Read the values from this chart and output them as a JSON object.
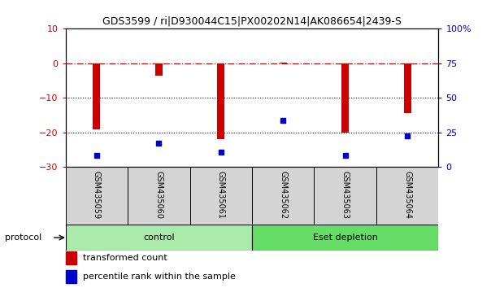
{
  "title": "GDS3599 / ri|D930044C15|PX00202N14|AK086654|2439-S",
  "samples": [
    "GSM435059",
    "GSM435060",
    "GSM435061",
    "GSM435062",
    "GSM435063",
    "GSM435064"
  ],
  "red_values": [
    -19.0,
    -3.5,
    -22.0,
    0.2,
    -20.0,
    -14.5
  ],
  "blue_values": [
    8.5,
    17.5,
    10.5,
    34.0,
    8.5,
    22.5
  ],
  "red_color": "#cc0000",
  "blue_color": "#0000cc",
  "left_ylim": [
    -30,
    10
  ],
  "right_ylim": [
    0,
    100
  ],
  "left_yticks": [
    10,
    0,
    -10,
    -20,
    -30
  ],
  "right_yticks": [
    100,
    75,
    50,
    25,
    0
  ],
  "right_yticklabels": [
    "100%",
    "75",
    "50",
    "25",
    "0"
  ],
  "hlines_dotted": [
    -10,
    -20
  ],
  "protocol_groups": [
    {
      "label": "control",
      "start": 0,
      "end": 3,
      "color": "#aaeaaa"
    },
    {
      "label": "Eset depletion",
      "start": 3,
      "end": 6,
      "color": "#66dd66"
    }
  ],
  "legend_items": [
    {
      "label": "transformed count",
      "color": "#cc0000"
    },
    {
      "label": "percentile rank within the sample",
      "color": "#0000cc"
    }
  ],
  "protocol_label": "protocol",
  "bar_width": 0.12
}
